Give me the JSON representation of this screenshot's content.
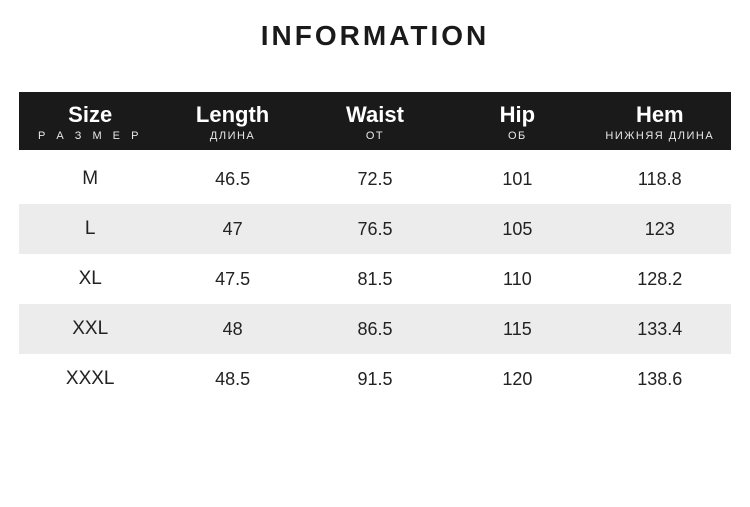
{
  "title": "INFORMATION",
  "table": {
    "type": "table",
    "background_color": "#ffffff",
    "header_bg": "#1a1a1a",
    "header_fg": "#ffffff",
    "row_odd_bg": "#ffffff",
    "row_even_bg": "#ececec",
    "cell_fontsize": 18,
    "header_en_fontsize": 22,
    "header_ru_fontsize": 11,
    "columns": [
      {
        "en": "Size",
        "ru": "Р А З М Е Р"
      },
      {
        "en": "Length",
        "ru": "ДЛИНА"
      },
      {
        "en": "Waist",
        "ru": "ОТ"
      },
      {
        "en": "Hip",
        "ru": "ОБ"
      },
      {
        "en": "Hem",
        "ru": "НИЖНЯЯ ДЛИНА"
      }
    ],
    "rows": [
      [
        "M",
        "46.5",
        "72.5",
        "101",
        "118.8"
      ],
      [
        "L",
        "47",
        "76.5",
        "105",
        "123"
      ],
      [
        "XL",
        "47.5",
        "81.5",
        "110",
        "128.2"
      ],
      [
        "XXL",
        "48",
        "86.5",
        "115",
        "133.4"
      ],
      [
        "XXXL",
        "48.5",
        "91.5",
        "120",
        "138.6"
      ]
    ]
  }
}
